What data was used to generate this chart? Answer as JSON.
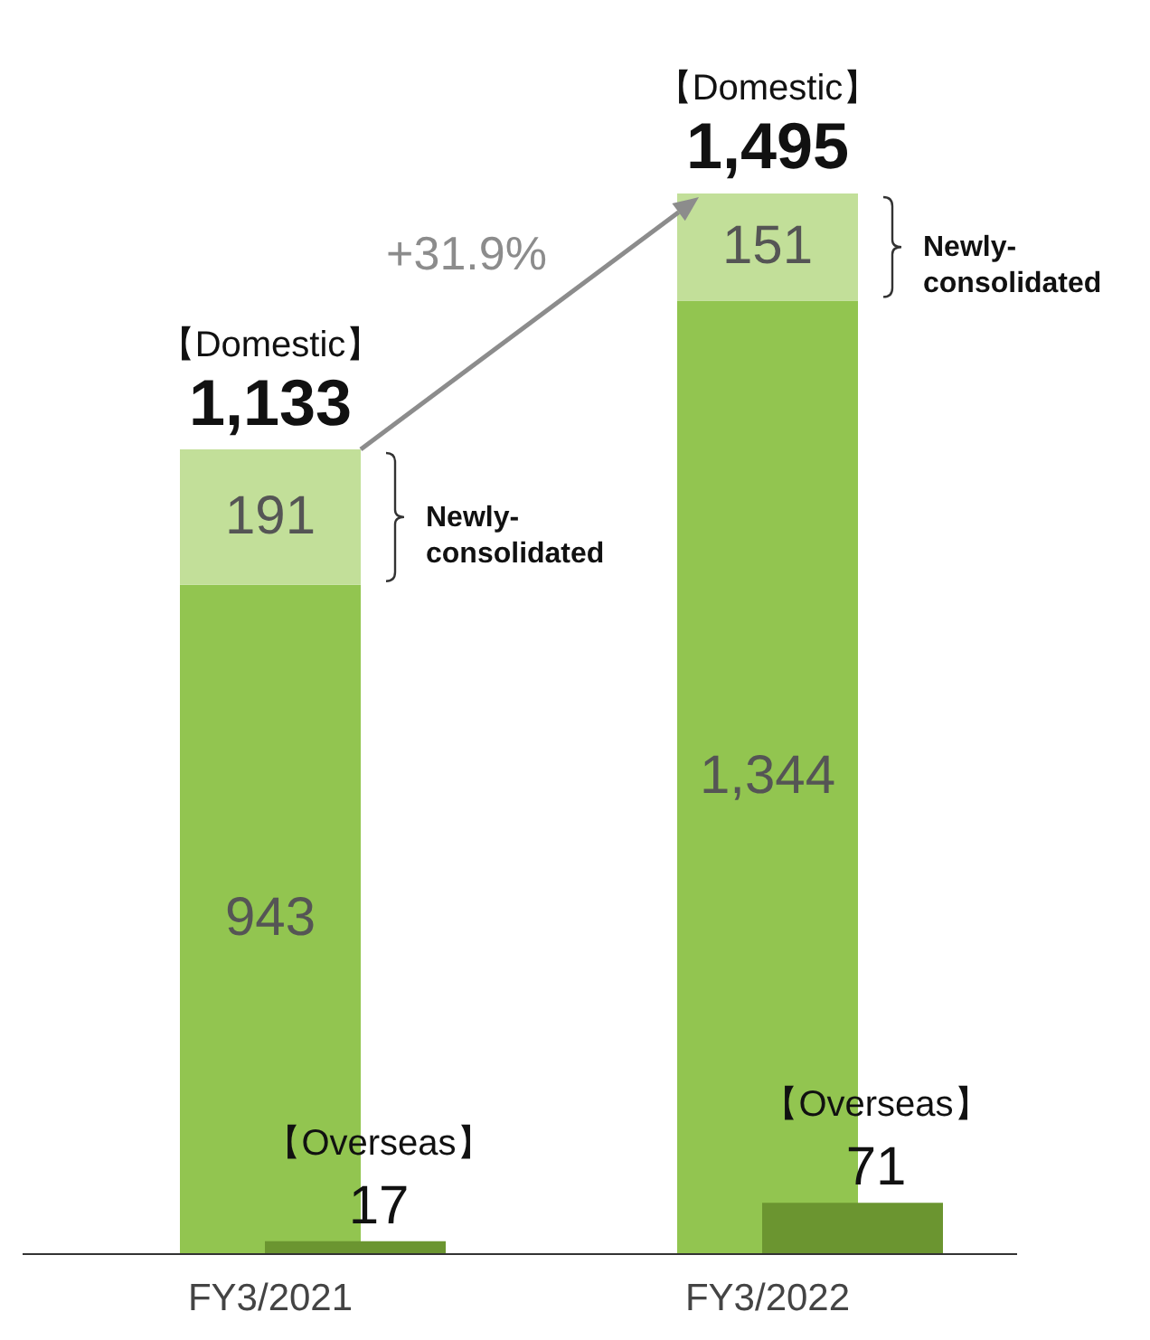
{
  "chart_data": [
    {
      "type": "bar",
      "stacked": true,
      "categories": [
        "FY3/2021",
        "FY3/2022"
      ],
      "series": [
        {
          "color": "#92c550",
          "values": [
            943,
            1344
          ],
          "value_labels": [
            "943",
            "1,344"
          ]
        },
        {
          "name": "Newly-consolidated",
          "color": "#c2df99",
          "values": [
            191,
            151
          ],
          "value_labels": [
            "191",
            "151"
          ]
        }
      ],
      "annotations": [
        "+31.9%",
        {
          "text": "1,133",
          "x": "FY3/2021",
          "y": 1133
        },
        {
          "text": "1,495",
          "x": "FY3/2022",
          "y": 1495
        },
        {
          "text": "【Domestic】",
          "x": "FY3/2021",
          "y": 1133
        },
        {
          "text": "【Domestic】",
          "x": "FY3/2022",
          "y": 1495
        }
      ],
      "grid": false
    },
    {
      "type": "bar",
      "categories": [
        null,
        null
      ],
      "series": [
        {
          "name": "【Overseas】",
          "color": "#6b9530",
          "values": [
            17,
            71
          ],
          "value_labels": [
            "17",
            "71"
          ]
        }
      ],
      "grid": false
    }
  ]
}
